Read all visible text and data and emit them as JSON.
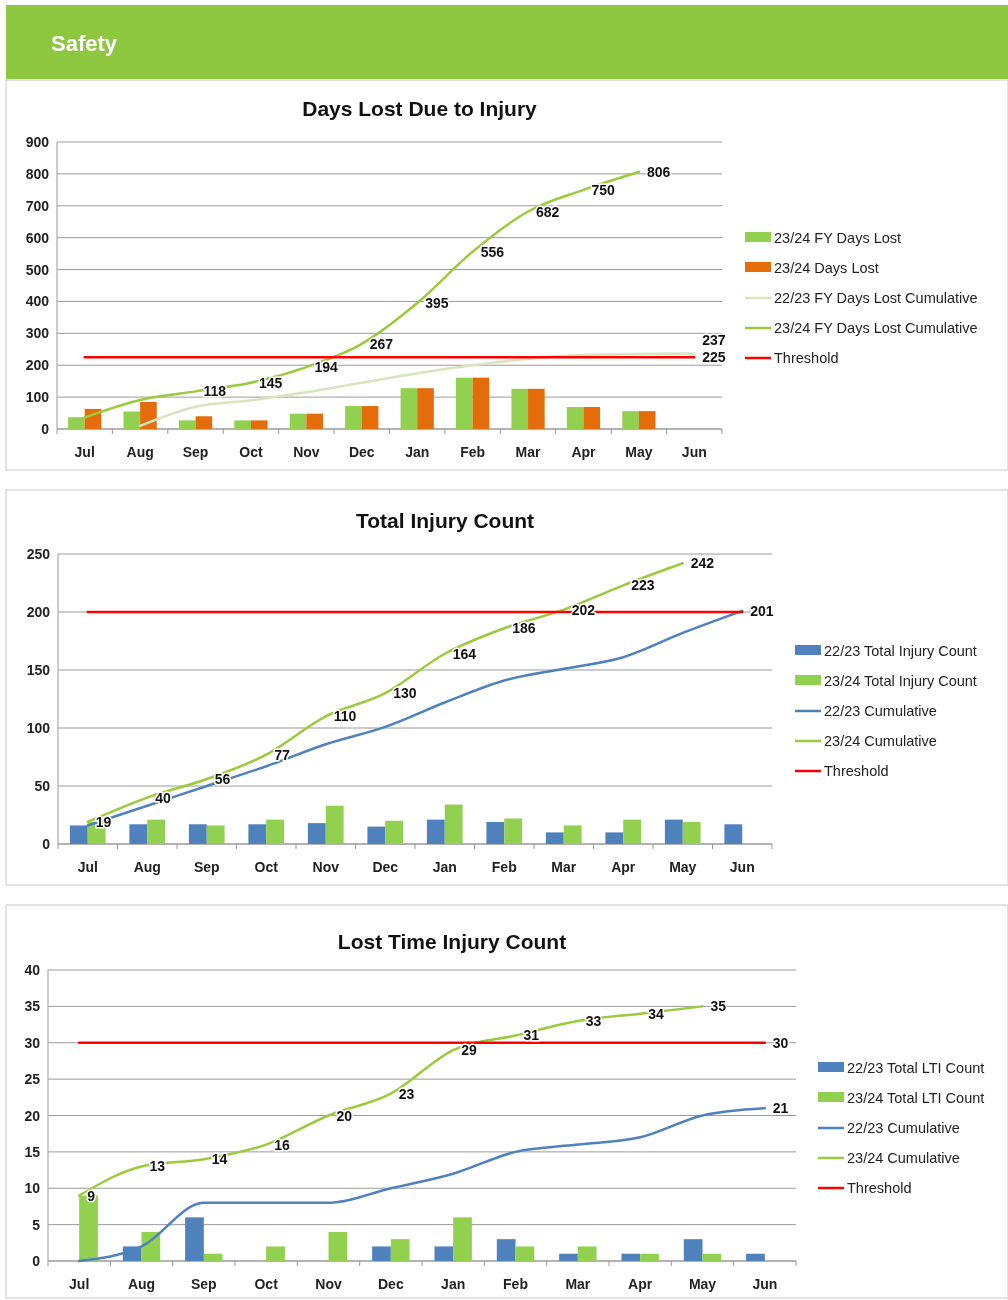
{
  "chart_data": [
    {
      "type": "bar",
      "title": "Days Lost Due to Injury",
      "annotations": [
        "Safety"
      ],
      "categories": [
        "Jul",
        "Aug",
        "Sep",
        "Oct",
        "Nov",
        "Dec",
        "Jan",
        "Feb",
        "Mar",
        "Apr",
        "May",
        "Jun"
      ],
      "ylim": [
        0,
        900
      ],
      "yticks": [
        0,
        100,
        200,
        300,
        400,
        500,
        600,
        700,
        800,
        900
      ],
      "grid": "y",
      "legend": "right",
      "marker": "none",
      "series": [
        {
          "name": "23/24 FY Days Lost",
          "type": "bar",
          "color": "#92d050",
          "values": [
            37,
            55,
            27,
            27,
            48,
            72,
            128,
            161,
            126,
            69,
            56,
            null
          ]
        },
        {
          "name": "23/24 Days Lost",
          "type": "bar",
          "color": "#e46c0a",
          "values": [
            63,
            85,
            40,
            27,
            48,
            72,
            128,
            161,
            126,
            69,
            56,
            null
          ]
        },
        {
          "name": "22/23 FY Days Lost Cumulative",
          "type": "line",
          "color": "#d7e4bd",
          "values": [
            null,
            10,
            70,
            90,
            115,
            145,
            175,
            200,
            220,
            232,
            235,
            237
          ],
          "value_labels": [
            null,
            null,
            null,
            null,
            null,
            null,
            null,
            null,
            null,
            null,
            null,
            "237"
          ]
        },
        {
          "name": "23/24 FY Days Lost Cumulative",
          "type": "line",
          "color": "#9bcb3c",
          "values": [
            36,
            91,
            118,
            145,
            194,
            267,
            395,
            556,
            682,
            750,
            806,
            null
          ],
          "value_labels": [
            null,
            null,
            "118",
            "145",
            "194",
            "267",
            "395",
            "556",
            "682",
            "750",
            "806",
            null
          ]
        },
        {
          "name": "Threshold",
          "type": "line",
          "color": "#ff0000",
          "values": [
            225,
            225,
            225,
            225,
            225,
            225,
            225,
            225,
            225,
            225,
            225,
            225
          ],
          "value_labels": [
            null,
            null,
            null,
            null,
            null,
            null,
            null,
            null,
            null,
            null,
            null,
            "225"
          ]
        }
      ]
    },
    {
      "type": "bar",
      "title": "Total Injury Count",
      "categories": [
        "Jul",
        "Aug",
        "Sep",
        "Oct",
        "Nov",
        "Dec",
        "Jan",
        "Feb",
        "Mar",
        "Apr",
        "May",
        "Jun"
      ],
      "ylim": [
        0,
        250
      ],
      "yticks": [
        0,
        50,
        100,
        150,
        200,
        250
      ],
      "grid": "y",
      "legend": "right",
      "marker": "none",
      "series": [
        {
          "name": "22/23 Total Injury Count",
          "type": "bar",
          "color": "#4f81bd",
          "values": [
            16,
            17,
            17,
            17,
            18,
            15,
            21,
            19,
            10,
            10,
            21,
            17
          ]
        },
        {
          "name": "23/24 Total Injury Count",
          "type": "bar",
          "color": "#92d050",
          "values": [
            19,
            21,
            16,
            21,
            33,
            20,
            34,
            22,
            16,
            21,
            19,
            null
          ]
        },
        {
          "name": "22/23 Cumulative",
          "type": "line",
          "color": "#4f81bd",
          "values": [
            16,
            33,
            50,
            67,
            86,
            101,
            122,
            141,
            151,
            161,
            182,
            201
          ],
          "value_labels": [
            null,
            null,
            null,
            null,
            null,
            null,
            null,
            null,
            null,
            null,
            null,
            "201"
          ]
        },
        {
          "name": "23/24 Cumulative",
          "type": "line",
          "color": "#9bcb3c",
          "values": [
            19,
            40,
            56,
            77,
            110,
            130,
            164,
            186,
            202,
            223,
            242,
            null
          ],
          "value_labels": [
            "19",
            "40",
            "56",
            "77",
            "110",
            "130",
            "164",
            "186",
            "202",
            "223",
            "242",
            null
          ]
        },
        {
          "name": "Threshold",
          "type": "line",
          "color": "#ff0000",
          "values": [
            200,
            200,
            200,
            200,
            200,
            200,
            200,
            200,
            200,
            200,
            200,
            200
          ]
        }
      ]
    },
    {
      "type": "bar",
      "title": "Lost Time Injury Count",
      "categories": [
        "Jul",
        "Aug",
        "Sep",
        "Oct",
        "Nov",
        "Dec",
        "Jan",
        "Feb",
        "Mar",
        "Apr",
        "May",
        "Jun"
      ],
      "ylim": [
        0,
        40
      ],
      "yticks": [
        0,
        5,
        10,
        15,
        20,
        25,
        30,
        35,
        40
      ],
      "grid": "y",
      "legend": "right",
      "marker": "none",
      "series": [
        {
          "name": "22/23 Total LTI Count",
          "type": "bar",
          "color": "#4f81bd",
          "values": [
            0,
            2,
            6,
            0,
            0,
            2,
            2,
            3,
            1,
            1,
            3,
            1
          ]
        },
        {
          "name": "23/24 Total LTI Count",
          "type": "bar",
          "color": "#92d050",
          "values": [
            9,
            4,
            1,
            2,
            4,
            3,
            6,
            2,
            2,
            1,
            1,
            null
          ]
        },
        {
          "name": "22/23 Cumulative",
          "type": "line",
          "color": "#4f81bd",
          "values": [
            0,
            2,
            8,
            8,
            8,
            10,
            12,
            15,
            16,
            17,
            20,
            21
          ],
          "value_labels": [
            null,
            null,
            null,
            null,
            null,
            null,
            null,
            null,
            null,
            null,
            null,
            "21"
          ]
        },
        {
          "name": "23/24 Cumulative",
          "type": "line",
          "color": "#9bcb3c",
          "values": [
            9,
            13,
            14,
            16,
            20,
            23,
            29,
            31,
            33,
            34,
            35,
            null
          ],
          "value_labels": [
            "9",
            "13",
            "14",
            "16",
            "20",
            "23",
            "29",
            "31",
            "33",
            "34",
            "35",
            null
          ]
        },
        {
          "name": "Threshold",
          "type": "line",
          "color": "#ff0000",
          "values": [
            30,
            30,
            30,
            30,
            30,
            30,
            30,
            30,
            30,
            30,
            30,
            30
          ],
          "value_labels": [
            null,
            null,
            null,
            null,
            null,
            null,
            null,
            null,
            null,
            null,
            null,
            "30"
          ]
        }
      ]
    }
  ]
}
